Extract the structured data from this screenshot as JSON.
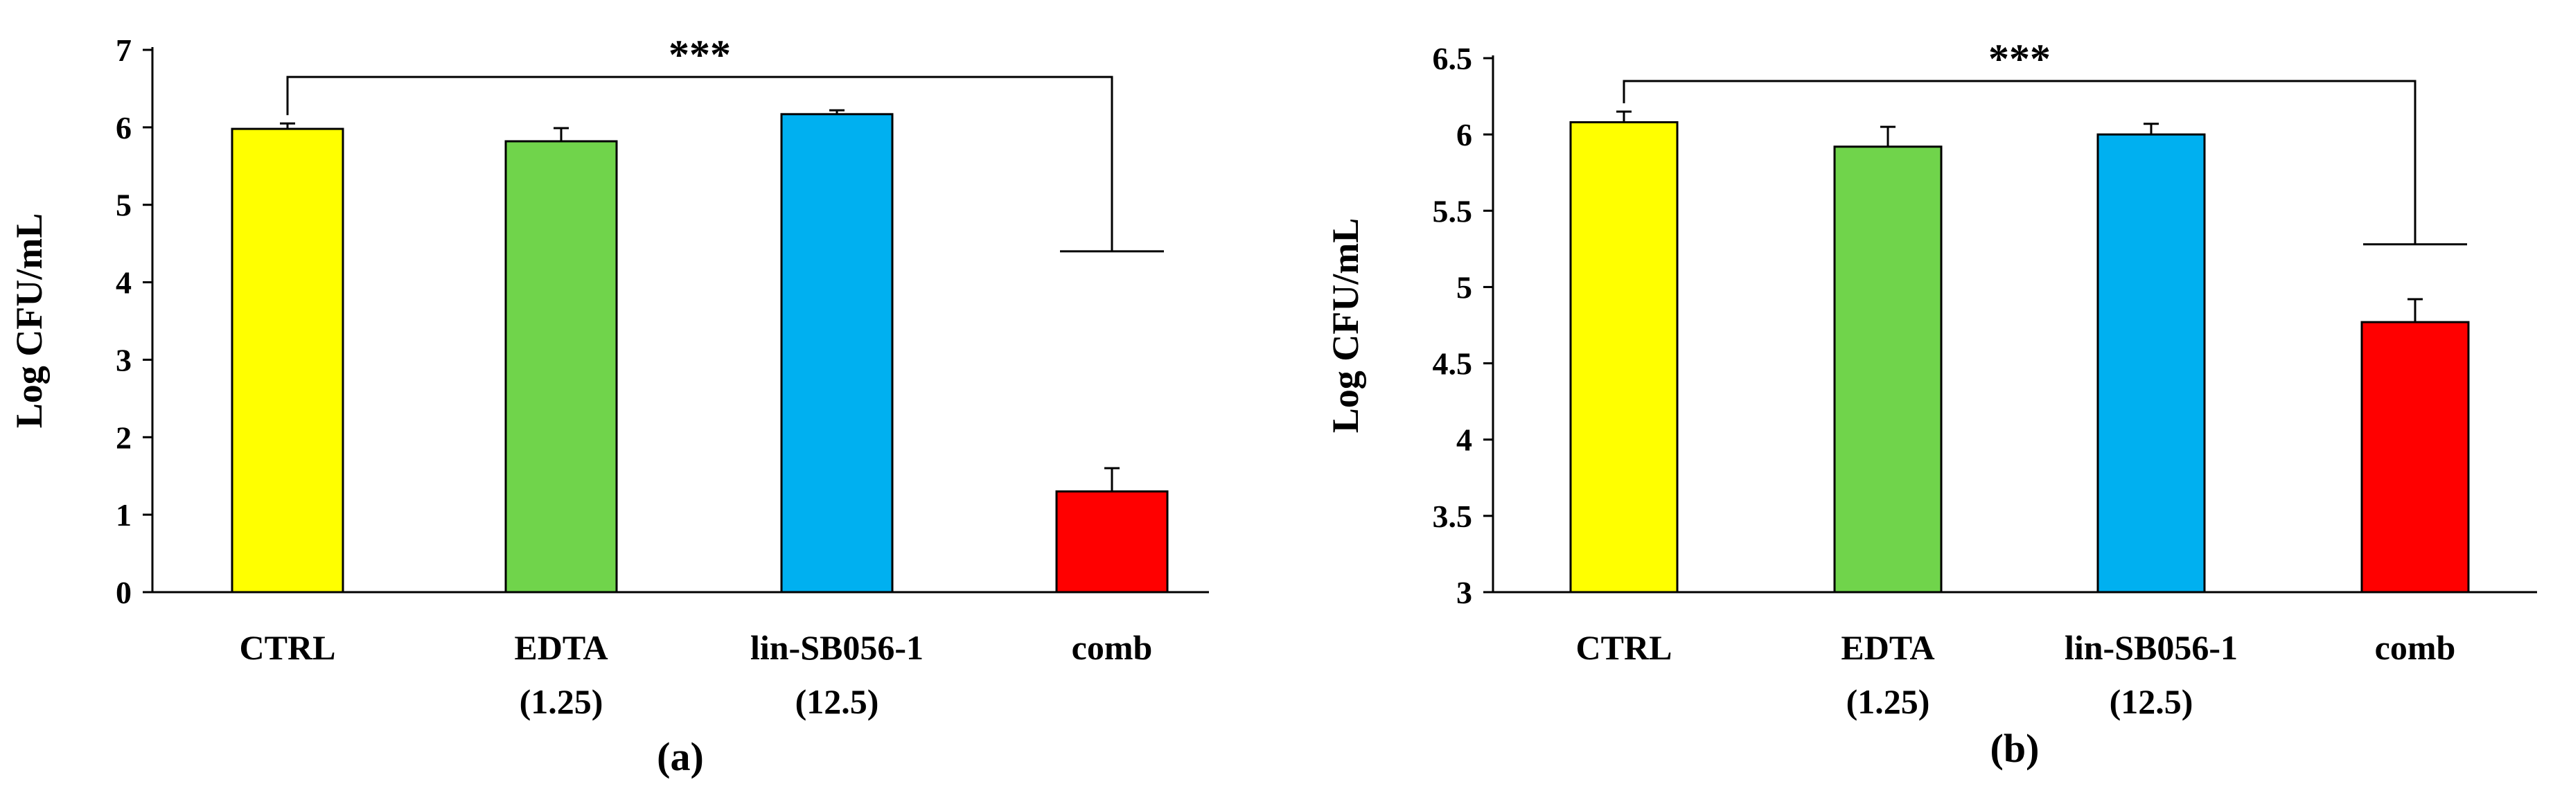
{
  "chart_data": [
    {
      "type": "bar",
      "panel_label": "(a)",
      "ylabel": "Log CFU/mL",
      "ylim": [
        0,
        7
      ],
      "yticks": [
        0,
        1,
        2,
        3,
        4,
        5,
        6,
        7
      ],
      "categories": [
        {
          "line1": "CTRL",
          "line2": ""
        },
        {
          "line1": "EDTA",
          "line2": "(1.25)"
        },
        {
          "line1": "lin-SB056-1",
          "line2": "(12.5)"
        },
        {
          "line1": "comb",
          "line2": ""
        }
      ],
      "values": [
        5.98,
        5.82,
        6.17,
        1.3
      ],
      "errors": [
        0.07,
        0.17,
        0.05,
        0.3
      ],
      "colors": [
        "#ffff00",
        "#70d44b",
        "#00b0f0",
        "#ff0000"
      ],
      "significance": {
        "label": "***",
        "from": 0,
        "to": 3,
        "bracket_y": 6.65,
        "right_drop_y": 4.4
      }
    },
    {
      "type": "bar",
      "panel_label": "(b)",
      "ylabel": "Log CFU/mL",
      "ylim": [
        3,
        6.5
      ],
      "yticks": [
        3,
        3.5,
        4,
        4.5,
        5,
        5.5,
        6,
        6.5
      ],
      "categories": [
        {
          "line1": "CTRL",
          "line2": ""
        },
        {
          "line1": "EDTA",
          "line2": "(1.25)"
        },
        {
          "line1": "lin-SB056-1",
          "line2": "(12.5)"
        },
        {
          "line1": "comb",
          "line2": ""
        }
      ],
      "values": [
        6.08,
        5.92,
        6.0,
        4.77
      ],
      "errors": [
        0.07,
        0.13,
        0.07,
        0.15
      ],
      "colors": [
        "#ffff00",
        "#70d44b",
        "#00b0f0",
        "#ff0000"
      ],
      "significance": {
        "label": "***",
        "from": 0,
        "to": 3,
        "bracket_y": 6.35,
        "right_drop_y": 5.28
      }
    }
  ]
}
